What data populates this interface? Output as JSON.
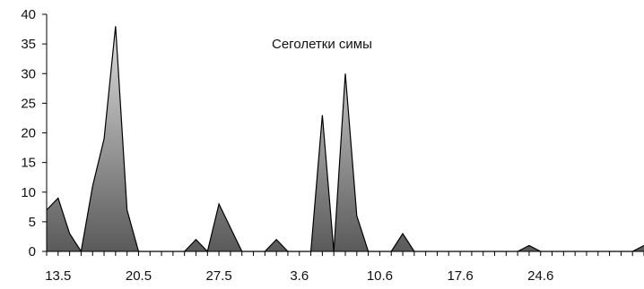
{
  "chart_data": {
    "type": "area",
    "title": "Сеголетки симы",
    "xlabel": "",
    "ylabel": "",
    "ylim": [
      0,
      40
    ],
    "yticks": [
      "0",
      "5",
      "10",
      "15",
      "20",
      "25",
      "30",
      "35",
      "40"
    ],
    "xtick_labels": [
      "13.5",
      "20.5",
      "27.5",
      "3.6",
      "10.6",
      "17.6",
      "24.6"
    ],
    "xtick_indices": [
      1,
      8,
      15,
      22,
      29,
      36,
      43
    ],
    "grid": false,
    "legend": "none",
    "series": [
      {
        "values": [
          7,
          9,
          3,
          0,
          11,
          19,
          38,
          7,
          0,
          0,
          0,
          0,
          0,
          2,
          0,
          8,
          4,
          0,
          0,
          0,
          2,
          0,
          0,
          0,
          23,
          0,
          30,
          6,
          0,
          0,
          0,
          3,
          0,
          0,
          0,
          0,
          0,
          0,
          0,
          0,
          0,
          0,
          1,
          0,
          0,
          0,
          0,
          0,
          0,
          0,
          0,
          0,
          1
        ]
      }
    ],
    "colors": {
      "fill_light": "#dedede",
      "fill_dark": "#5a5a5a",
      "line": "#000000",
      "axis": "#000000",
      "text": "#111111"
    }
  }
}
